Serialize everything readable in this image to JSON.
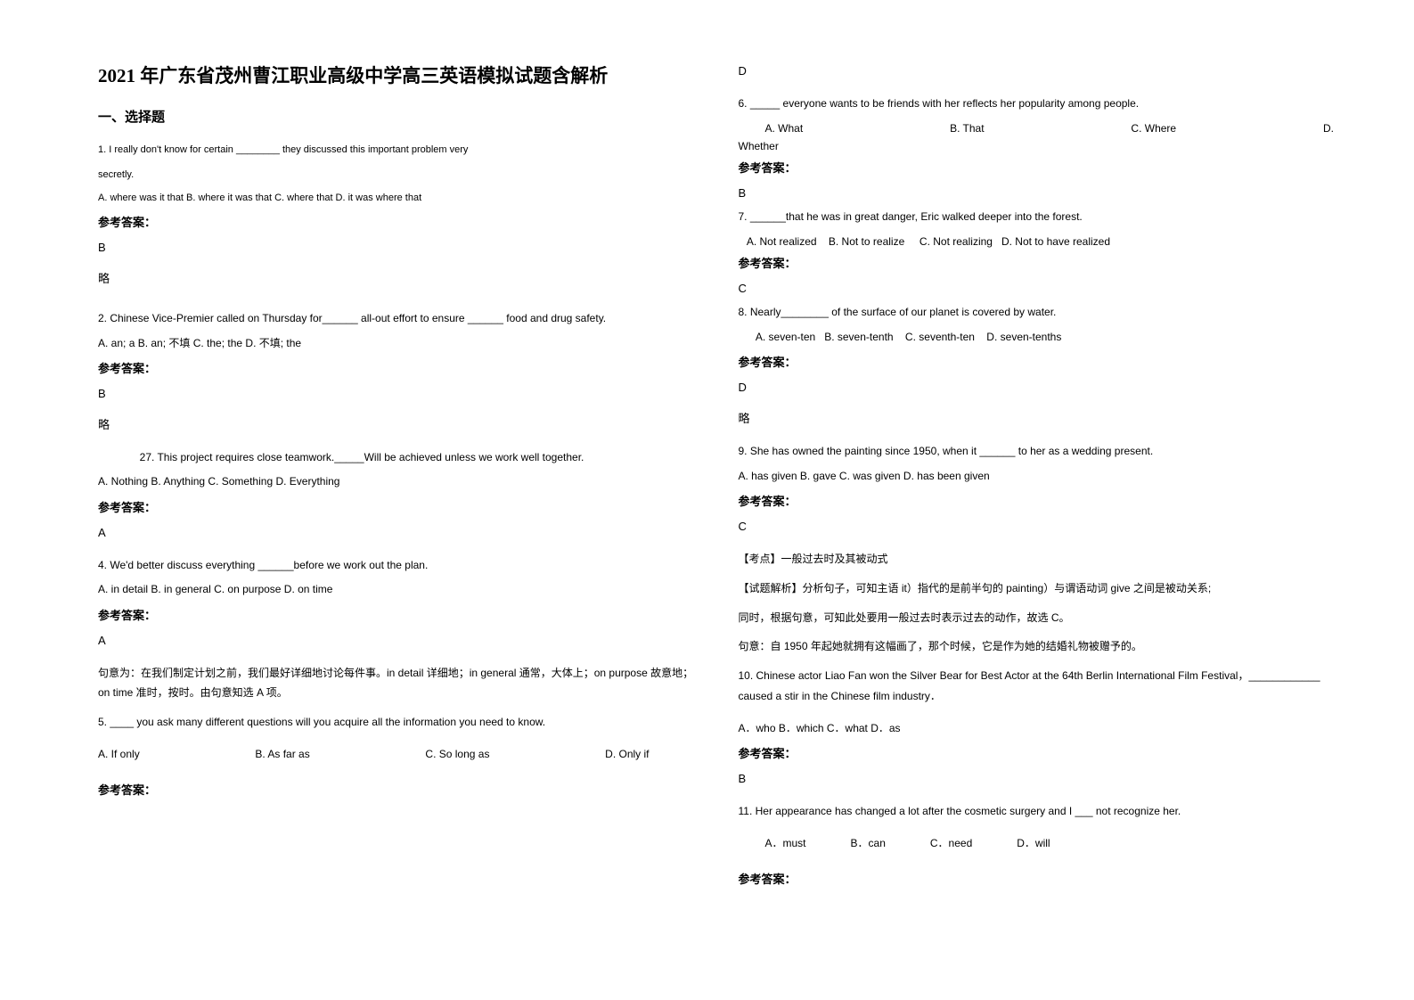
{
  "colors": {
    "text": "#000000",
    "background": "#ffffff"
  },
  "typography": {
    "title_fontsize": 21,
    "section_fontsize": 15,
    "body_fontsize": 12,
    "small_fontsize": 11,
    "answer_fontsize": 13
  },
  "header": {
    "title": "2021 年广东省茂州曹江职业高级中学高三英语模拟试题含解析"
  },
  "section1": {
    "heading": "一、选择题"
  },
  "q1": {
    "text_line1": "1. I really don't know for certain ________ they discussed this important problem very",
    "text_line2": "secretly.",
    "options": "A. where was it that    B. where it was that    C. where that    D. it was where that",
    "answer_label": "参考答案：",
    "answer": "B",
    "note": "略"
  },
  "q2": {
    "text": "2. Chinese Vice-Premier called on Thursday for______ all-out effort to ensure ______ food and drug safety.",
    "options": "A. an; a        B. an; 不填      C. the; the      D. 不填; the",
    "answer_label": "参考答案：",
    "answer": "B",
    "note": "略"
  },
  "q3": {
    "text": "              27. This project requires close teamwork._____Will be achieved unless we work well together.",
    "options": "A. Nothing        B. Anything        C. Something        D. Everything",
    "answer_label": "参考答案：",
    "answer": "A"
  },
  "q4": {
    "text": "4. We'd better discuss everything ______before we work out the plan.",
    "options": "A. in detail      B. in general    C. on purpose   D. on time",
    "answer_label": "参考答案：",
    "answer": "A",
    "explanation": "句意为：在我们制定计划之前，我们最好详细地讨论每件事。in detail 详细地；in general 通常，大体上；on purpose 故意地；on time 准时，按时。由句意知选 A 项。"
  },
  "q5": {
    "text": "5. ____ you ask many different questions will you acquire all the information you need to know.",
    "opt_a": "A. If only",
    "opt_b": "B. As far as",
    "opt_c": "C. So long as",
    "opt_d": "D. Only if",
    "answer_label": "参考答案：",
    "answer": "D"
  },
  "q6": {
    "text": "6. _____ everyone wants to be friends with her reflects her popularity among people.",
    "opt_a": "A. What",
    "opt_b": "B. That",
    "opt_c": "C. Where",
    "opt_d": "D.",
    "opt_d2": "Whether",
    "answer_label": "参考答案：",
    "answer": "B"
  },
  "q7": {
    "text": "7. ______that he was in great danger, Eric walked deeper into the forest.",
    "options": "   A. Not realized    B. Not to realize     C. Not realizing   D. Not to have realized",
    "answer_label": "参考答案：",
    "answer": "C"
  },
  "q8": {
    "text": "8. Nearly________ of the surface of our planet is covered by water.",
    "options": "      A. seven-ten   B. seven-tenth    C. seventh-ten    D. seven-tenths",
    "answer_label": "参考答案：",
    "answer": "D",
    "note": "略"
  },
  "q9": {
    "text": "9. She has owned the painting since 1950, when it ______ to her as a wedding present.",
    "options": "A. has given     B. gave C. was given     D. has been given",
    "answer_label": "参考答案：",
    "answer": "C",
    "point": "【考点】一般过去时及其被动式",
    "analysis1": "【试题解析】分析句子，可知主语 it）指代的是前半句的 painting）与谓语动词 give 之间是被动关系;",
    "analysis2": "同时，根据句意，可知此处要用一般过去时表示过去的动作，故选 C。",
    "meaning": "句意：自 1950 年起她就拥有这幅画了，那个时候，它是作为她的结婚礼物被赠予的。"
  },
  "q10": {
    "text": "10. Chinese actor Liao Fan won the Silver Bear for Best Actor at the 64th Berlin International Film Festival，____________ caused a stir in the Chinese film industry．",
    "options": "A．who   B．which   C．what   D．as",
    "answer_label": "参考答案：",
    "answer": "B"
  },
  "q11": {
    "text": "11. Her appearance has changed a lot after the cosmetic surgery and I ___ not recognize her.",
    "opt_a": "A．must",
    "opt_b": "B．can",
    "opt_c": "C．need",
    "opt_d": "D．will",
    "answer_label": "参考答案："
  }
}
